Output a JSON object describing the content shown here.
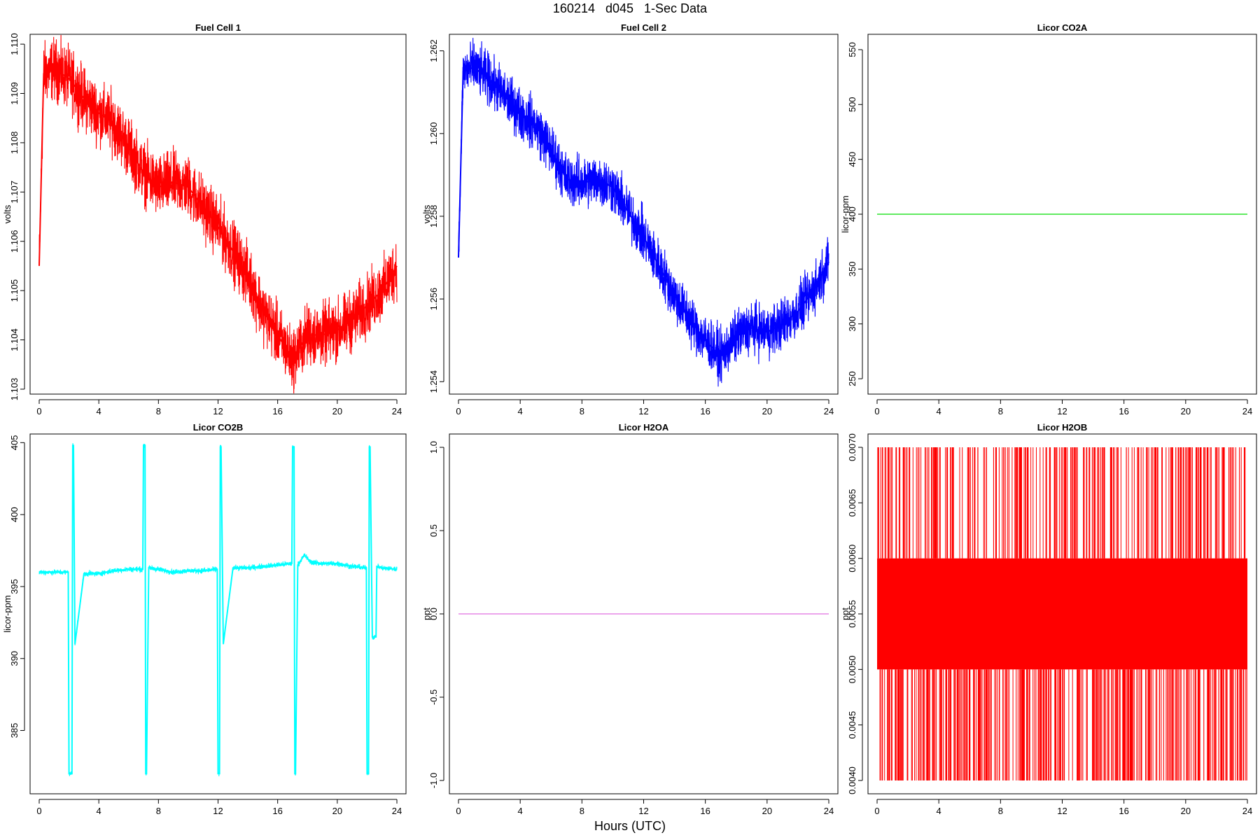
{
  "figure": {
    "title": "160214   d045   1-Sec Data",
    "xlabel": "Hours (UTC)"
  },
  "chart_data": [
    {
      "type": "line",
      "title": "Fuel Cell 1",
      "ylabel": "volts",
      "color": "#ff0000",
      "xlim": [
        0,
        24
      ],
      "ylim": [
        1.1029,
        1.1102
      ],
      "xticks": [
        0,
        4,
        8,
        12,
        16,
        20,
        24
      ],
      "yticks": [
        1.103,
        1.104,
        1.105,
        1.106,
        1.107,
        1.108,
        1.109,
        1.11
      ],
      "ytick_labels": [
        "1.103",
        "1.104",
        "1.105",
        "1.106",
        "1.107",
        "1.108",
        "1.109",
        "1.110"
      ],
      "series": [
        {
          "x": [
            0,
            0.3,
            1,
            2,
            3,
            4,
            5,
            6,
            7,
            8,
            9,
            10,
            11,
            12,
            13,
            14,
            15,
            16,
            17,
            18,
            19,
            20,
            21,
            22,
            23,
            24
          ],
          "y": [
            1.1055,
            1.1094,
            1.1095,
            1.1093,
            1.1089,
            1.1086,
            1.1084,
            1.1079,
            1.1074,
            1.1071,
            1.1072,
            1.1071,
            1.1067,
            1.1063,
            1.1058,
            1.1053,
            1.1046,
            1.1041,
            1.1036,
            1.1041,
            1.1041,
            1.1042,
            1.1044,
            1.1047,
            1.105,
            1.1055
          ],
          "noise": 0.0005
        }
      ]
    },
    {
      "type": "line",
      "title": "Fuel Cell 2",
      "ylabel": "volts",
      "color": "#0000ff",
      "xlim": [
        0,
        24
      ],
      "ylim": [
        1.2537,
        1.2624
      ],
      "xticks": [
        0,
        4,
        8,
        12,
        16,
        20,
        24
      ],
      "yticks": [
        1.254,
        1.256,
        1.258,
        1.26,
        1.262
      ],
      "ytick_labels": [
        "1.254",
        "1.256",
        "1.258",
        "1.260",
        "1.262"
      ],
      "series": [
        {
          "x": [
            0,
            0.3,
            1,
            2,
            3,
            4,
            5,
            6,
            7,
            8,
            9,
            10,
            11,
            12,
            13,
            14,
            15,
            16,
            17,
            18,
            19,
            20,
            21,
            22,
            23,
            24
          ],
          "y": [
            1.257,
            1.2615,
            1.2616,
            1.2613,
            1.2609,
            1.2605,
            1.2602,
            1.2596,
            1.2589,
            1.2588,
            1.2589,
            1.2587,
            1.2581,
            1.2575,
            1.2568,
            1.2561,
            1.2555,
            1.255,
            1.2546,
            1.2551,
            1.2553,
            1.2552,
            1.2554,
            1.2557,
            1.2562,
            1.2569
          ],
          "noise": 0.0005
        }
      ]
    },
    {
      "type": "line",
      "title": "Licor CO2A",
      "ylabel": "licor-ppm",
      "color": "#00dd00",
      "xlim": [
        0,
        24
      ],
      "ylim": [
        236,
        564
      ],
      "xticks": [
        0,
        4,
        8,
        12,
        16,
        20,
        24
      ],
      "yticks": [
        250,
        300,
        350,
        400,
        450,
        500,
        550
      ],
      "ytick_labels": [
        "250",
        "300",
        "350",
        "400",
        "450",
        "500",
        "550"
      ],
      "series": [
        {
          "x": [
            0,
            24
          ],
          "y": [
            400,
            400
          ]
        }
      ]
    },
    {
      "type": "line",
      "title": "Licor CO2B",
      "ylabel": "licor-ppm",
      "color": "#00ffff",
      "xlim": [
        0,
        24
      ],
      "ylim": [
        380.6,
        405.6
      ],
      "xticks": [
        0,
        4,
        8,
        12,
        16,
        20,
        24
      ],
      "yticks": [
        385,
        390,
        395,
        400,
        405
      ],
      "ytick_labels": [
        "385",
        "390",
        "395",
        "400",
        "405"
      ],
      "series": [
        {
          "x": [
            0,
            1,
            1.95,
            2.0,
            2.2,
            2.25,
            2.3,
            2.4,
            3,
            4,
            5,
            6,
            6.95,
            7.0,
            7.1,
            7.15,
            7.2,
            7.35,
            8,
            9,
            10,
            11,
            11.95,
            12.0,
            12.1,
            12.15,
            12.2,
            12.35,
            13,
            14,
            15,
            16,
            16.95,
            17.0,
            17.1,
            17.15,
            17.2,
            17.35,
            17.8,
            18.2,
            19,
            20,
            21,
            21.95,
            22.0,
            22.1,
            22.15,
            22.2,
            22.35,
            22.6,
            22.65,
            23,
            24
          ],
          "y": [
            396.0,
            396.0,
            396.0,
            382.0,
            382.0,
            404.8,
            404.8,
            391.0,
            395.9,
            395.9,
            396.1,
            396.2,
            396.2,
            404.8,
            404.8,
            382.0,
            382.0,
            396.3,
            396.2,
            396.0,
            396.1,
            396.1,
            396.2,
            382.0,
            382.0,
            404.7,
            404.7,
            391.0,
            396.3,
            396.3,
            396.4,
            396.5,
            396.6,
            404.7,
            404.7,
            382.0,
            382.0,
            396.5,
            397.2,
            396.7,
            396.6,
            396.6,
            396.4,
            396.3,
            382.0,
            382.0,
            404.7,
            404.7,
            391.5,
            391.5,
            396.4,
            396.3,
            396.2
          ],
          "noise": 0.15
        }
      ]
    },
    {
      "type": "line",
      "title": "Licor H2OA",
      "ylabel": "ppt",
      "color": "#e06fe0",
      "xlim": [
        0,
        24
      ],
      "ylim": [
        -1.08,
        1.08
      ],
      "xticks": [
        0,
        4,
        8,
        12,
        16,
        20,
        24
      ],
      "yticks": [
        -1,
        -0.5,
        0,
        0.5,
        1
      ],
      "ytick_labels": [
        "-1.0",
        "-0.5",
        "0.0",
        "0.5",
        "1.0"
      ],
      "series": [
        {
          "x": [
            0,
            24
          ],
          "y": [
            0,
            0
          ]
        }
      ]
    },
    {
      "type": "line",
      "title": "Licor H2OB",
      "ylabel": "ppt",
      "color": "#ff0000",
      "xlim": [
        0,
        24
      ],
      "ylim": [
        0.00388,
        0.00712
      ],
      "xticks": [
        0,
        4,
        8,
        12,
        16,
        20,
        24
      ],
      "yticks": [
        0.004,
        0.0045,
        0.005,
        0.0055,
        0.006,
        0.0065,
        0.007
      ],
      "ytick_labels": [
        "0.0040",
        "0.0045",
        "0.0050",
        "0.0055",
        "0.0060",
        "0.0065",
        "0.0070"
      ],
      "quantized_levels": [
        0.004,
        0.005,
        0.006,
        0.007
      ],
      "band": [
        0.005,
        0.006
      ],
      "series": [
        {
          "x": [
            0,
            24
          ],
          "y": [
            0.005,
            0.006
          ]
        }
      ]
    }
  ]
}
